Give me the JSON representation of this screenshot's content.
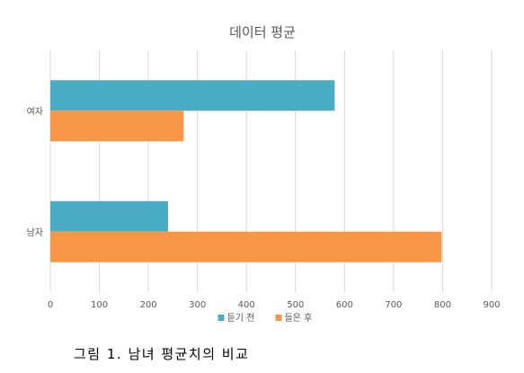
{
  "caption": "그림 1. 남녀 평균치의 비교",
  "chart_data": {
    "type": "bar",
    "orientation": "horizontal",
    "title": "데이터 평균",
    "categories": [
      "여자",
      "남자"
    ],
    "series": [
      {
        "name": "듣기 전",
        "values": [
          580,
          240
        ],
        "color": "#4BACC6"
      },
      {
        "name": "들은 후",
        "values": [
          272,
          798
        ],
        "color": "#F79646"
      }
    ],
    "xlim": [
      0,
      900
    ],
    "x_ticks": [
      0,
      100,
      200,
      300,
      400,
      500,
      600,
      700,
      800,
      900
    ],
    "grid": true,
    "legend_position": "bottom"
  }
}
